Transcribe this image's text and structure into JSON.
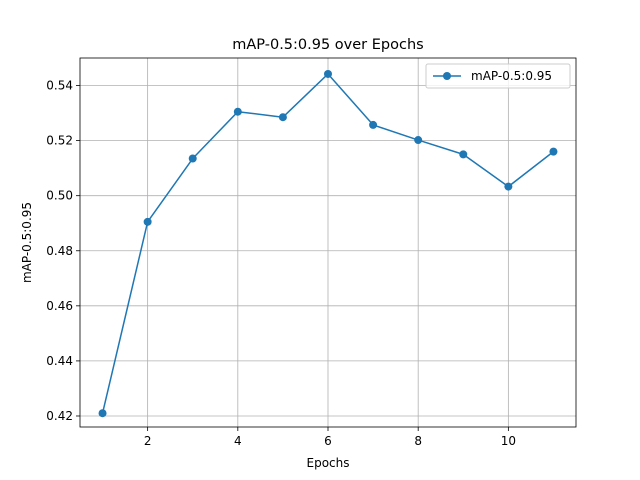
{
  "chart_data": {
    "type": "line",
    "title": "mAP-0.5:0.95 over Epochs",
    "xlabel": "Epochs",
    "ylabel": "mAP-0.5:0.95",
    "xlim": [
      0.5,
      11.5
    ],
    "ylim": [
      0.416,
      0.55
    ],
    "xticks": [
      2,
      4,
      6,
      8,
      10
    ],
    "yticks": [
      0.42,
      0.44,
      0.46,
      0.48,
      0.5,
      0.52,
      0.54
    ],
    "ytick_labels": [
      "0.42",
      "0.44",
      "0.46",
      "0.48",
      "0.50",
      "0.52",
      "0.54"
    ],
    "grid": true,
    "legend_position": "top-right",
    "series": [
      {
        "name": "mAP-0.5:0.95",
        "color": "#1f77b4",
        "marker": "circle",
        "x": [
          1,
          2,
          3,
          4,
          5,
          6,
          7,
          8,
          9,
          10,
          11
        ],
        "y": [
          0.421,
          0.4905,
          0.5135,
          0.5305,
          0.5285,
          0.5442,
          0.5257,
          0.5202,
          0.515,
          0.5033,
          0.516
        ]
      }
    ]
  }
}
